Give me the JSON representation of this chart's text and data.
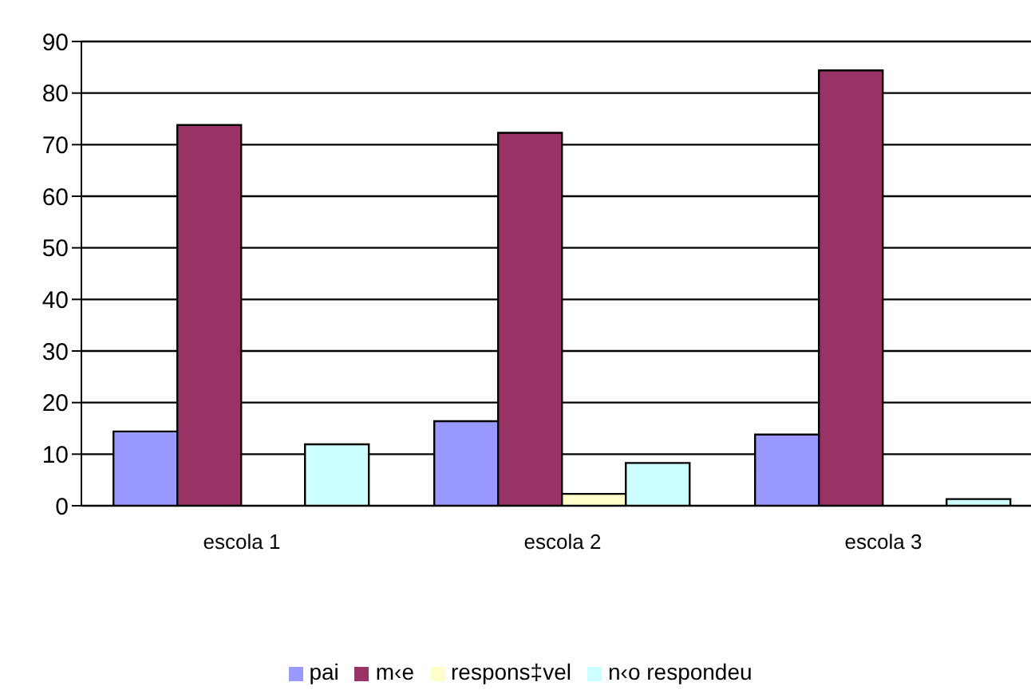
{
  "chart_data": {
    "type": "bar",
    "categories": [
      "escola 1",
      "escola 2",
      "escola 3"
    ],
    "series": [
      {
        "name": "pai",
        "color": "#9999ff",
        "values": [
          14.4,
          16.4,
          13.8
        ]
      },
      {
        "name": "m‹e",
        "color": "#993366",
        "values": [
          73.8,
          72.3,
          84.4
        ]
      },
      {
        "name": "respons‡vel",
        "color": "#ffffcc",
        "values": [
          0,
          2.3,
          0
        ]
      },
      {
        "name": "n‹o respondeu",
        "color": "#ccffff",
        "values": [
          11.9,
          8.3,
          1.3
        ]
      }
    ],
    "ylim": [
      0,
      90
    ],
    "yticks": [
      0,
      10,
      20,
      30,
      40,
      50,
      60,
      70,
      80,
      90
    ],
    "grid": "y",
    "legend": "bottom"
  }
}
